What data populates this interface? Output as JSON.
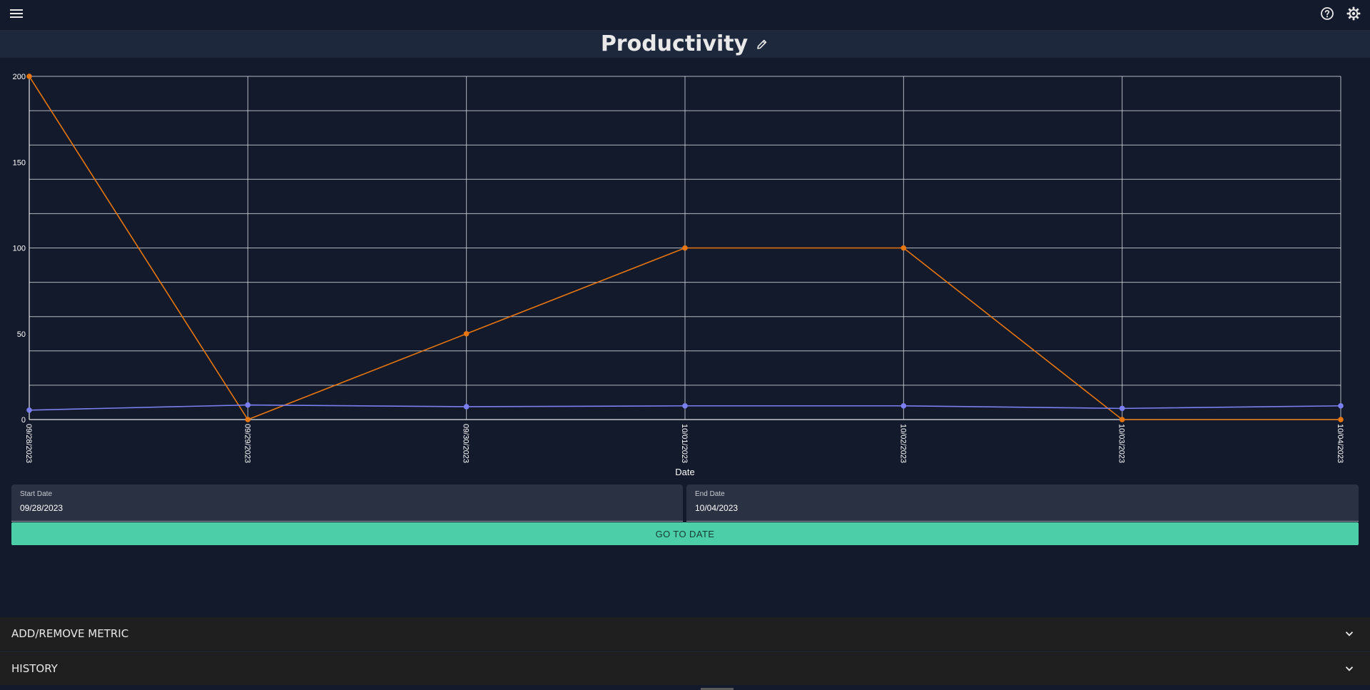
{
  "header": {
    "menu_icon": "menu-icon",
    "help_icon": "help-icon",
    "settings_icon": "gear-icon"
  },
  "title": {
    "text": "Productivity",
    "edit_icon": "pencil-icon"
  },
  "chart_data": {
    "type": "line",
    "x": [
      "09/28/2023",
      "09/29/2023",
      "09/30/2023",
      "10/01/2023",
      "10/02/2023",
      "10/03/2023",
      "10/04/2023"
    ],
    "series": [
      {
        "color": "#e8760f",
        "values": [
          200,
          0,
          50,
          100,
          100,
          0,
          0
        ]
      },
      {
        "color": "#7b7ff0",
        "values": [
          5.5,
          8.5,
          7.5,
          8,
          8,
          6.5,
          8
        ]
      }
    ],
    "xlabel": "Date",
    "ylabel": "",
    "ylim": [
      0,
      200
    ],
    "yticks": [
      0,
      50,
      100,
      150,
      200
    ],
    "grid": true
  },
  "date_range": {
    "start_label": "Start Date",
    "start_value": "09/28/2023",
    "end_label": "End Date",
    "end_value": "10/04/2023"
  },
  "go_button": "GO TO DATE",
  "sections": [
    {
      "label": "ADD/REMOVE METRIC"
    },
    {
      "label": "HISTORY"
    }
  ],
  "colors": {
    "background": "#131a2b",
    "title_bar": "#1e283d",
    "accent": "#4ccfa9",
    "series_orange": "#e8760f",
    "series_purple": "#7b7ff0"
  }
}
